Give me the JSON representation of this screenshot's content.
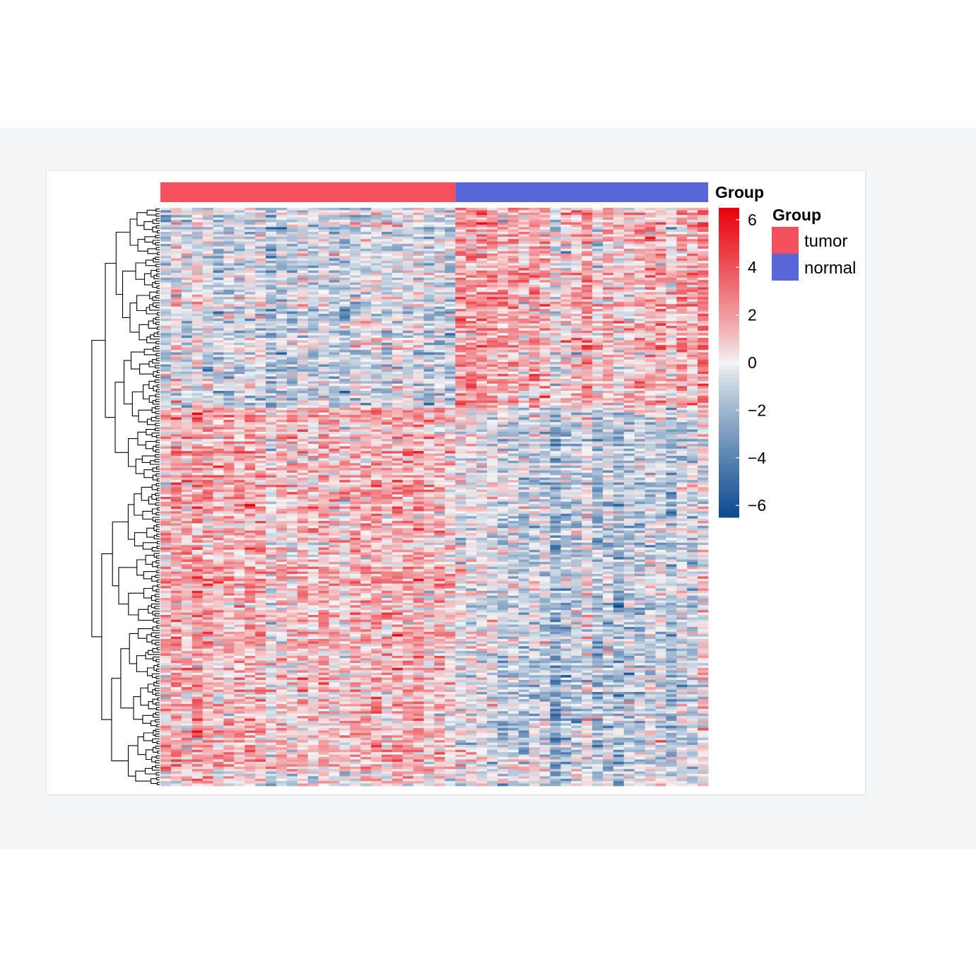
{
  "chart_data": {
    "type": "heatmap",
    "title": "",
    "annotation_track": {
      "name": "Group",
      "groups": [
        {
          "label": "tumor",
          "color": "#f4505e",
          "n_columns": 28
        },
        {
          "label": "normal",
          "color": "#5966d8",
          "n_columns": 24
        }
      ]
    },
    "legend": {
      "title": "Group",
      "entries": [
        {
          "label": "tumor",
          "color": "#f4505e"
        },
        {
          "label": "normal",
          "color": "#5966d8"
        }
      ],
      "placement": "right"
    },
    "colorbar": {
      "ticks": [
        6,
        4,
        2,
        0,
        -2,
        -4,
        -6
      ],
      "tick_labels": [
        "6",
        "4",
        "2",
        "0",
        "−2",
        "−4",
        "−6"
      ],
      "range": [
        -6.5,
        6.5
      ],
      "colors": {
        "low": "#0b4a8f",
        "mid": "#f5f5f5",
        "high": "#e8000b"
      }
    },
    "row_clusters": [
      {
        "fraction": 0.345,
        "tumor_mean": -0.8,
        "normal_mean": 1.4
      },
      {
        "fraction": 0.625,
        "tumor_mean": 1.3,
        "normal_mean": -0.9
      },
      {
        "fraction": 0.03,
        "tumor_mean": 0.5,
        "normal_mean": -0.4
      }
    ],
    "row_dendrogram": true,
    "column_dendrogram": false
  }
}
